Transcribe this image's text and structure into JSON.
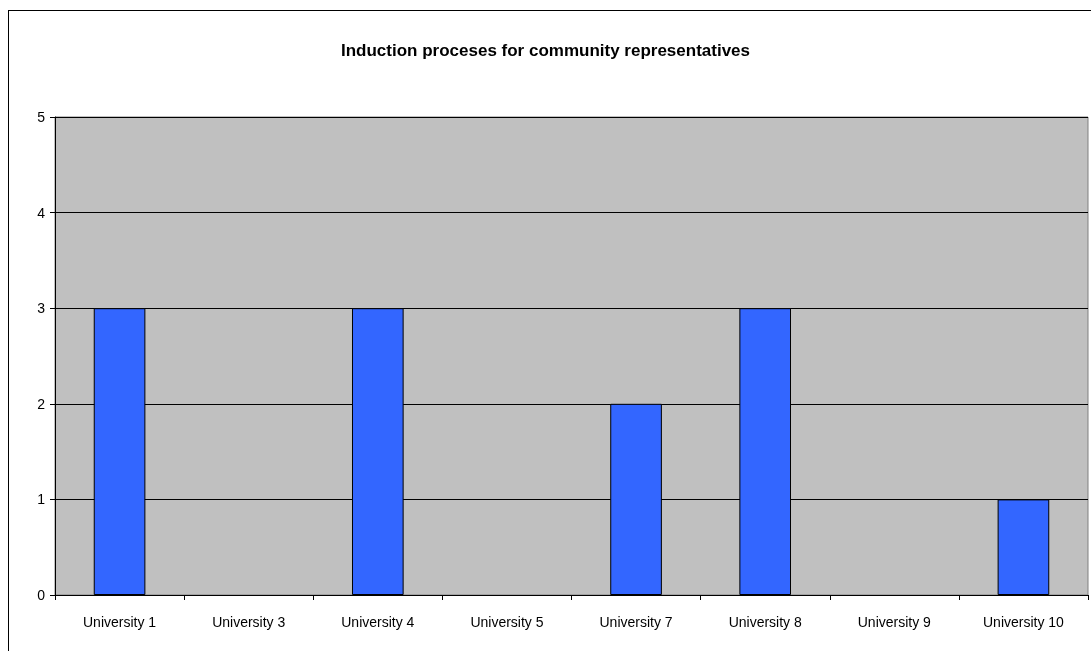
{
  "chart_data": {
    "type": "bar",
    "title": "Induction proceses for community representatives",
    "categories": [
      "University 1",
      "University 3",
      "University 4",
      "University 5",
      "University 7",
      "University 8",
      "University 9",
      "University 10"
    ],
    "values": [
      3,
      0,
      3,
      0,
      2,
      3,
      0,
      1
    ],
    "color": "#3366ff",
    "ylim": [
      0,
      5
    ],
    "yticks": [
      0,
      1,
      2,
      3,
      4,
      5
    ],
    "grid": "y"
  }
}
